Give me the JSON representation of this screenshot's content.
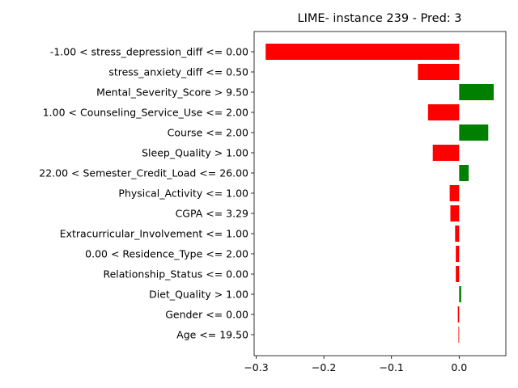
{
  "chart_data": {
    "type": "bar",
    "orientation": "horizontal",
    "title": "LIME- instance 239 - Pred: 3",
    "xlabel": "",
    "ylabel": "",
    "xlim": [
      -0.303,
      0.069
    ],
    "xticks": [
      -0.3,
      -0.2,
      -0.1,
      0.0
    ],
    "xtick_labels": [
      "−0.3",
      "−0.2",
      "−0.1",
      "0.0"
    ],
    "grid": false,
    "legend": "none",
    "colors": {
      "positive": "#008000",
      "negative": "#ff0000"
    },
    "categories": [
      "-1.00 < stress_depression_diff <= 0.00",
      "stress_anxiety_diff <= 0.50",
      "Mental_Severity_Score > 9.50",
      "1.00 < Counseling_Service_Use <= 2.00",
      "Course <= 2.00",
      "Sleep_Quality > 1.00",
      "22.00 < Semester_Credit_Load <= 26.00",
      "Physical_Activity <= 1.00",
      "CGPA <= 3.29",
      "Extracurricular_Involvement <= 1.00",
      "0.00 < Residence_Type <= 2.00",
      "Relationship_Status <= 0.00",
      "Diet_Quality > 1.00",
      "Gender <= 0.00",
      "Age <= 19.50"
    ],
    "values": [
      -0.286,
      -0.061,
      0.051,
      -0.046,
      0.043,
      -0.039,
      0.014,
      -0.014,
      -0.013,
      -0.006,
      -0.005,
      -0.005,
      0.003,
      -0.002,
      -0.001
    ]
  }
}
